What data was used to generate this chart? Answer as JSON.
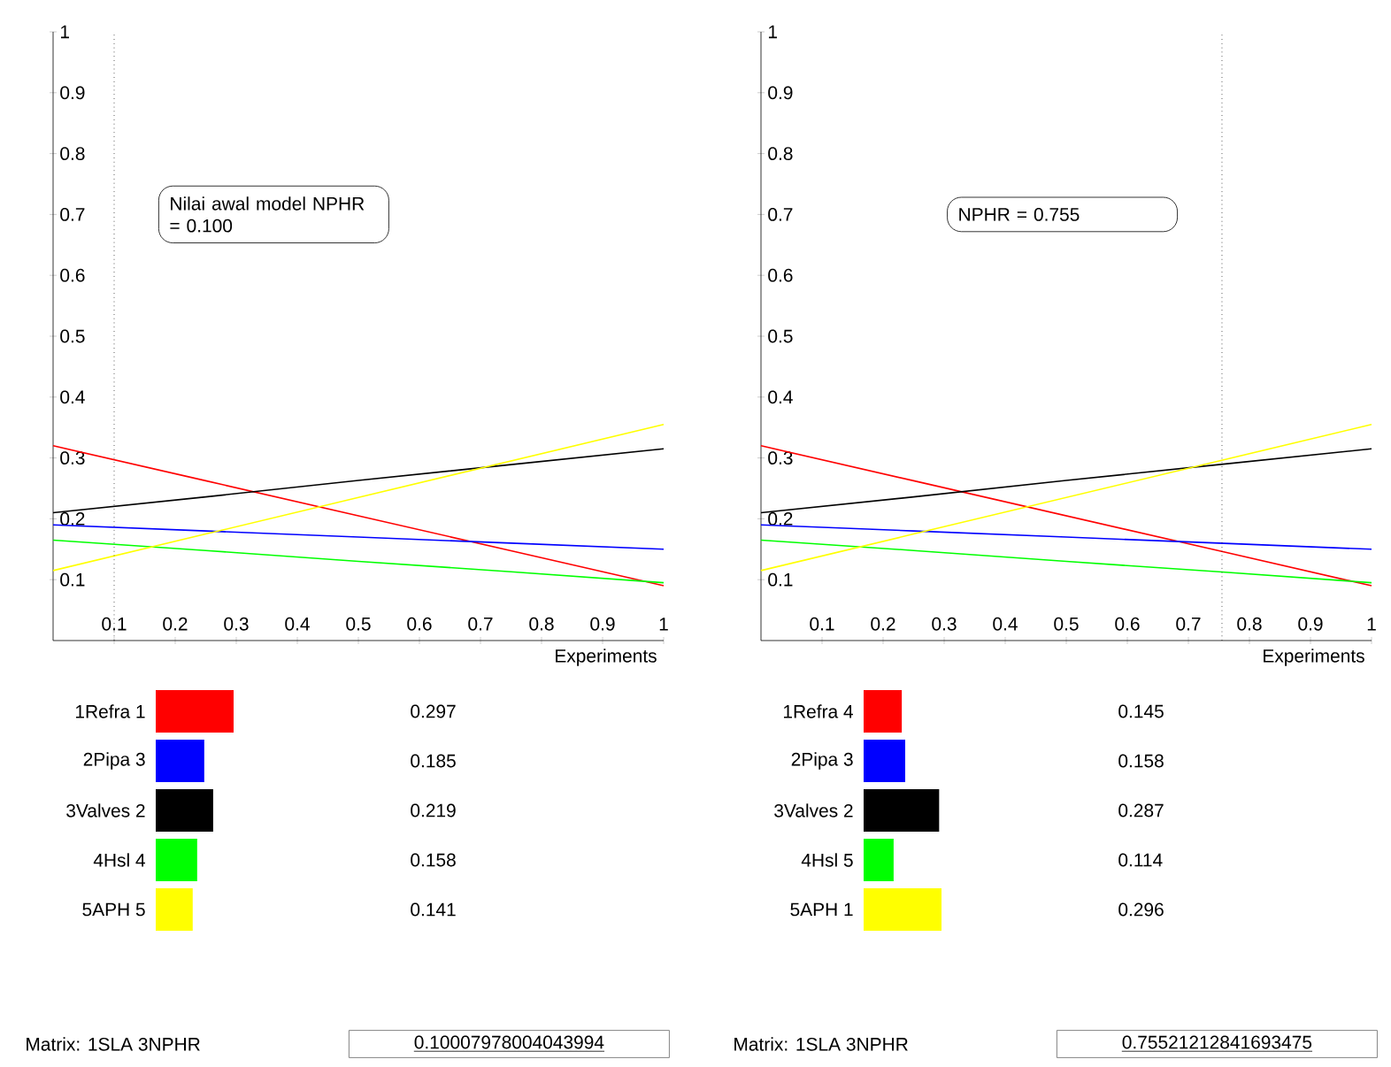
{
  "chart_data": [
    {
      "type": "line",
      "x": [
        0,
        0.25,
        0.5,
        0.75,
        1
      ],
      "xlim": [
        0,
        1
      ],
      "ylim": [
        0,
        1
      ],
      "xticks": [
        0.1,
        0.2,
        0.3,
        0.4,
        0.5,
        0.6,
        0.7,
        0.8,
        0.9,
        1
      ],
      "yticks": [
        0.1,
        0.2,
        0.3,
        0.4,
        0.5,
        0.6,
        0.7,
        0.8,
        0.9,
        1
      ],
      "xlabel": "Experiments",
      "marker": "none",
      "series": [
        {
          "color": "#ff0000",
          "values": [
            0.32,
            0.2625,
            0.205,
            0.1475,
            0.09
          ]
        },
        {
          "color": "#0000ff",
          "values": [
            0.19,
            0.18,
            0.17,
            0.16,
            0.15
          ]
        },
        {
          "color": "#000000",
          "values": [
            0.21,
            0.236,
            0.263,
            0.289,
            0.315
          ]
        },
        {
          "color": "#00ff00",
          "values": [
            0.165,
            0.148,
            0.13,
            0.113,
            0.095
          ]
        },
        {
          "color": "#ffff00",
          "values": [
            0.115,
            0.175,
            0.235,
            0.295,
            0.355
          ]
        }
      ],
      "ref_lines": [
        {
          "axis": "x",
          "value": 0.1,
          "label": "Nilai awal model NPHR = 0.100",
          "line_style": "dotted"
        }
      ]
    },
    {
      "type": "bar",
      "orientation": "horizontal",
      "categories": [
        "1Refra 1",
        "2Pipa 3",
        "3Valves 2",
        "4Hsl 4",
        "5APH 5"
      ],
      "values": [
        0.297,
        0.185,
        0.219,
        0.158,
        0.141
      ],
      "colors": [
        "#ff0000",
        "#0000ff",
        "#000000",
        "#00ff00",
        "#ffff00"
      ],
      "data_labels": true,
      "annotations": [
        "Matrix: 1SLA 3NPHR",
        "0.10007978004043994"
      ]
    },
    {
      "type": "line",
      "x": [
        0,
        0.25,
        0.5,
        0.75,
        1
      ],
      "xlim": [
        0,
        1
      ],
      "ylim": [
        0,
        1
      ],
      "xticks": [
        0.1,
        0.2,
        0.3,
        0.4,
        0.5,
        0.6,
        0.7,
        0.8,
        0.9,
        1
      ],
      "yticks": [
        0.1,
        0.2,
        0.3,
        0.4,
        0.5,
        0.6,
        0.7,
        0.8,
        0.9,
        1
      ],
      "xlabel": "Experiments",
      "marker": "none",
      "series": [
        {
          "color": "#ff0000",
          "values": [
            0.32,
            0.2625,
            0.205,
            0.1475,
            0.09
          ]
        },
        {
          "color": "#0000ff",
          "values": [
            0.19,
            0.18,
            0.17,
            0.16,
            0.15
          ]
        },
        {
          "color": "#000000",
          "values": [
            0.21,
            0.236,
            0.263,
            0.289,
            0.315
          ]
        },
        {
          "color": "#00ff00",
          "values": [
            0.165,
            0.148,
            0.13,
            0.113,
            0.095
          ]
        },
        {
          "color": "#ffff00",
          "values": [
            0.115,
            0.175,
            0.235,
            0.295,
            0.355
          ]
        }
      ],
      "ref_lines": [
        {
          "axis": "x",
          "value": 0.755,
          "label": "NPHR = 0.755",
          "line_style": "dotted"
        }
      ]
    },
    {
      "type": "bar",
      "orientation": "horizontal",
      "categories": [
        "1Refra 4",
        "2Pipa 3",
        "3Valves 2",
        "4Hsl 5",
        "5APH 1"
      ],
      "values": [
        0.145,
        0.158,
        0.287,
        0.114,
        0.296
      ],
      "colors": [
        "#ff0000",
        "#0000ff",
        "#000000",
        "#00ff00",
        "#ffff00"
      ],
      "data_labels": true,
      "annotations": [
        "Matrix: 1SLA 3NPHR",
        "0.75521212841693475"
      ]
    }
  ]
}
